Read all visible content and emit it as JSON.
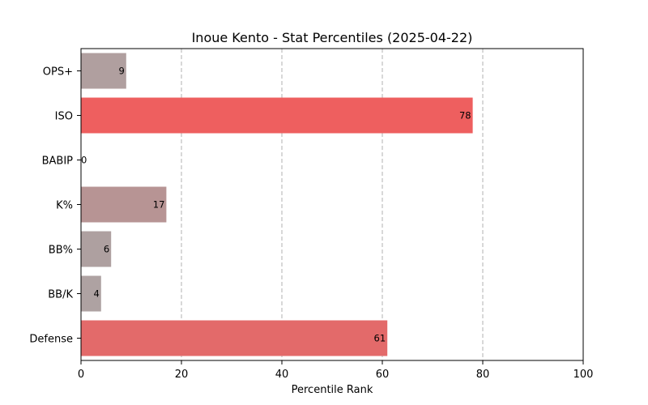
{
  "chart_data": {
    "type": "bar",
    "orientation": "horizontal",
    "title": "Inoue Kento - Stat Percentiles (2025-04-22)",
    "xlabel": "Percentile Rank",
    "ylabel": "",
    "xlim": [
      0,
      100
    ],
    "xticks": [
      "0",
      "20",
      "40",
      "60",
      "80",
      "100"
    ],
    "grid": "x-axis dashed",
    "categories": [
      "OPS+",
      "ISO",
      "BABIP",
      "K%",
      "BB%",
      "BB/K",
      "Defense"
    ],
    "values": [
      9,
      78,
      0,
      17,
      6,
      4,
      61
    ],
    "colors": [
      "#b09f9f",
      "#ee5f5f",
      "#a9a9a9",
      "#b79494",
      "#aea0a0",
      "#aea2a2",
      "#e36a6a"
    ]
  }
}
